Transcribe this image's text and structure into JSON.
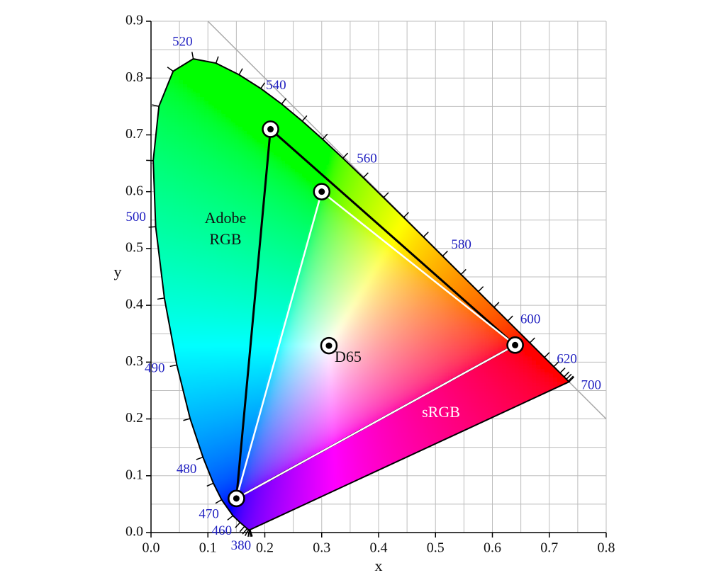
{
  "chart_data": {
    "type": "chromaticity",
    "x_label": "x",
    "y_label": "y",
    "xlim": [
      0,
      0.8
    ],
    "ylim": [
      0,
      0.9
    ],
    "xticks": [
      {
        "value": 0,
        "label": "0.0"
      },
      0.1,
      0.2,
      0.3,
      0.4,
      0.5,
      0.6,
      0.7,
      0.8
    ],
    "yticks": [
      {
        "value": 0,
        "label": "0.0"
      },
      0.1,
      0.2,
      0.3,
      0.4,
      0.5,
      0.6,
      0.7,
      0.8,
      0.9
    ],
    "xgrid": [
      0,
      0.05,
      0.1,
      0.15,
      0.2,
      0.25,
      0.3,
      0.35,
      0.4,
      0.45,
      0.5,
      0.55,
      0.6,
      0.65,
      0.7,
      0.75,
      0.8
    ],
    "ygrid": [
      0,
      0.05,
      0.1,
      0.15,
      0.2,
      0.25,
      0.3,
      0.35,
      0.4,
      0.45,
      0.5,
      0.55,
      0.6,
      0.65,
      0.7,
      0.75,
      0.8,
      0.85,
      0.9
    ],
    "grid": true,
    "locus": {
      "x": [
        0.1741,
        0.1738,
        0.1733,
        0.1726,
        0.1714,
        0.1689,
        0.1644,
        0.1566,
        0.144,
        0.1241,
        0.1096,
        0.0913,
        0.0687,
        0.0454,
        0.0235,
        0.0082,
        0.0039,
        0.0139,
        0.0389,
        0.0743,
        0.1142,
        0.1547,
        0.1929,
        0.2296,
        0.2658,
        0.3016,
        0.3373,
        0.3731,
        0.4087,
        0.4441,
        0.4788,
        0.5125,
        0.5448,
        0.5752,
        0.6029,
        0.627,
        0.6658,
        0.6915,
        0.7079,
        0.719,
        0.726,
        0.73,
        0.7334,
        0.7347
      ],
      "y": [
        0.005,
        0.0049,
        0.0048,
        0.0048,
        0.0051,
        0.0069,
        0.0109,
        0.0177,
        0.0297,
        0.0578,
        0.0868,
        0.1327,
        0.2007,
        0.295,
        0.4127,
        0.5384,
        0.6548,
        0.7502,
        0.812,
        0.8338,
        0.8262,
        0.8059,
        0.7816,
        0.7543,
        0.7243,
        0.6923,
        0.6589,
        0.6245,
        0.5896,
        0.5547,
        0.5202,
        0.4866,
        0.4544,
        0.4242,
        0.3965,
        0.3725,
        0.334,
        0.3083,
        0.292,
        0.2809,
        0.274,
        0.27,
        0.2666,
        0.2653
      ]
    },
    "wavelength_labels": [
      {
        "text": "380",
        "x": 0.1741,
        "y": 0.005
      },
      {
        "text": "460",
        "x": 0.144,
        "y": 0.0297
      },
      {
        "text": "470",
        "x": 0.1241,
        "y": 0.0578
      },
      {
        "text": "480",
        "x": 0.0913,
        "y": 0.1327
      },
      {
        "text": "490",
        "x": 0.0454,
        "y": 0.295
      },
      {
        "text": "500",
        "x": 0.0082,
        "y": 0.5384
      },
      {
        "text": "520",
        "x": 0.0743,
        "y": 0.8338
      },
      {
        "text": "540",
        "x": 0.2296,
        "y": 0.7543
      },
      {
        "text": "560",
        "x": 0.3731,
        "y": 0.6245
      },
      {
        "text": "580",
        "x": 0.5125,
        "y": 0.4866
      },
      {
        "text": "600",
        "x": 0.627,
        "y": 0.3725
      },
      {
        "text": "620",
        "x": 0.6915,
        "y": 0.3083
      },
      {
        "text": "700",
        "x": 0.7347,
        "y": 0.2653
      }
    ],
    "gamuts": [
      {
        "name": "Adobe RGB",
        "color": "#000000",
        "x": [
          0.64,
          0.21,
          0.15
        ],
        "y": [
          0.33,
          0.71,
          0.06
        ]
      },
      {
        "name": "sRGB",
        "color": "#ffffff",
        "x": [
          0.64,
          0.3,
          0.15
        ],
        "y": [
          0.33,
          0.6,
          0.06
        ]
      }
    ],
    "white_point": {
      "name": "D65",
      "x": 0.3127,
      "y": 0.329
    },
    "diagonal_color": "#aaaaaa"
  }
}
